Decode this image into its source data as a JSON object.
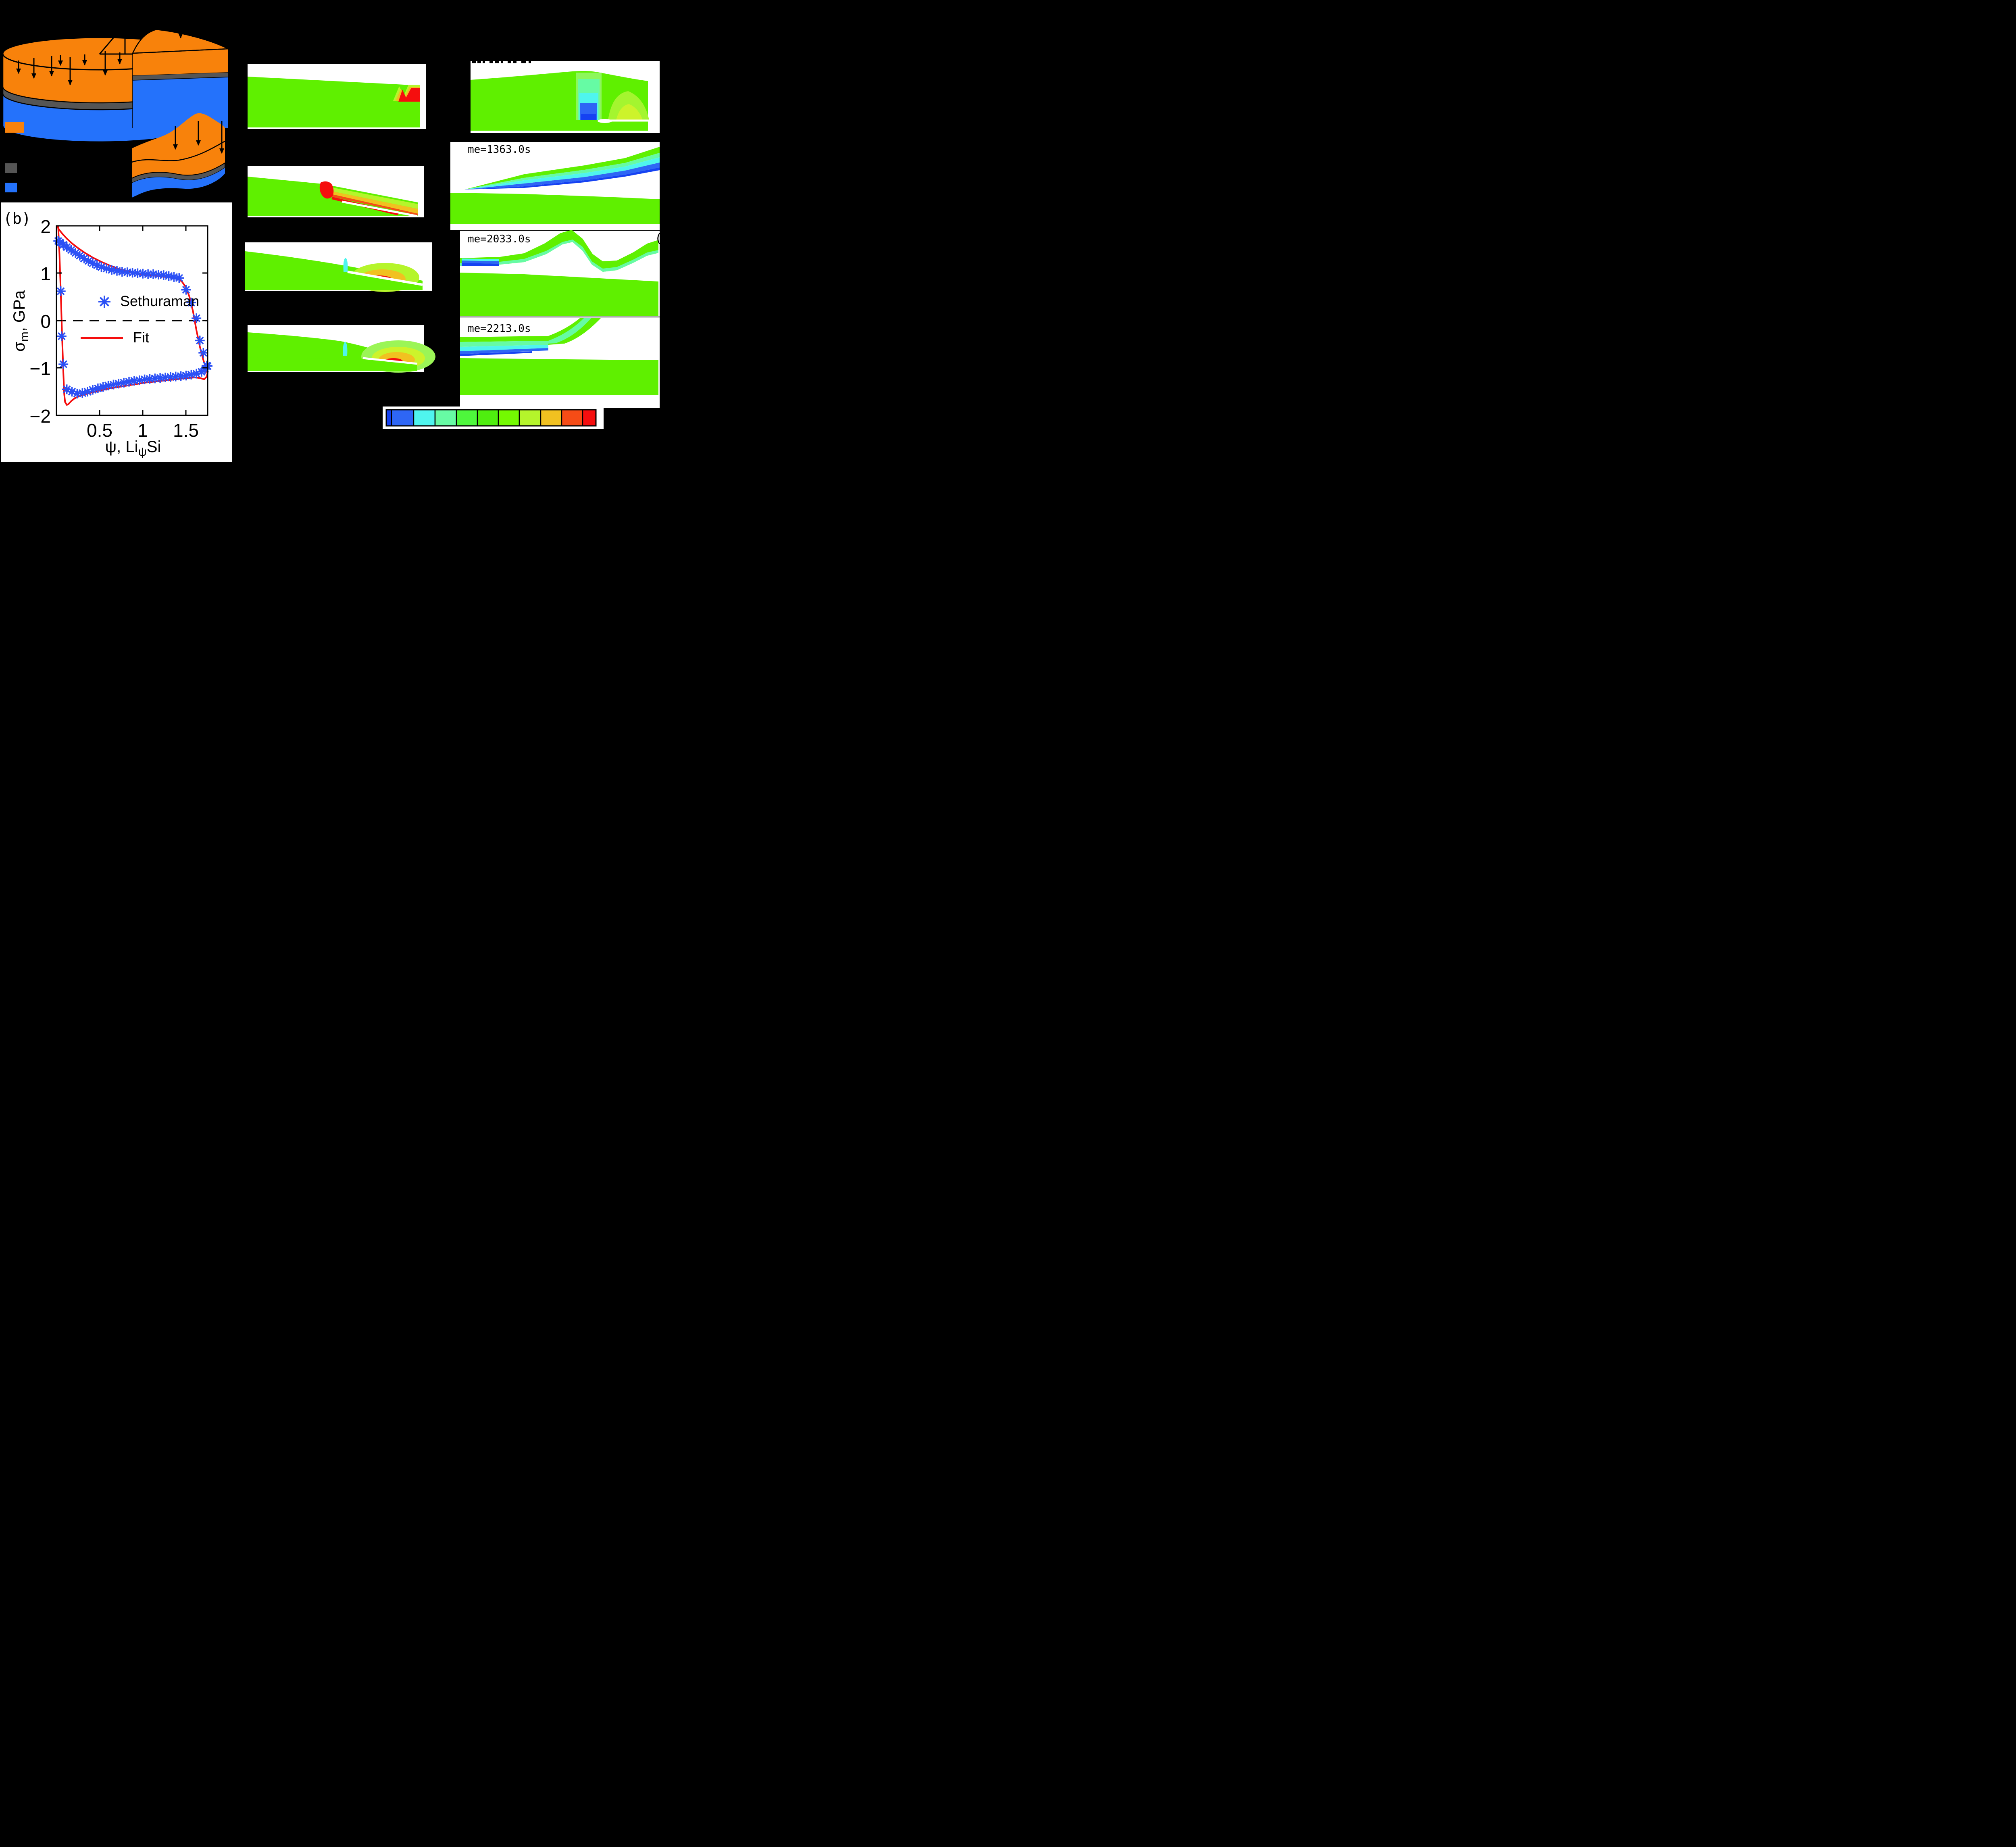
{
  "figure": {
    "background": "#000000",
    "panel_b_label": "(b)",
    "partial_panel_label": "(",
    "timestamps": [
      "me=1363.0s",
      "me=2033.0s",
      "me=2213.0s"
    ],
    "schematic_colors": {
      "film": "#F8820B",
      "interlayer": "#555555",
      "substrate": "#2472FB"
    }
  },
  "chart_data": {
    "type": "scatter",
    "title": "",
    "xlabel": {
      "prefix": "ψ, Li",
      "sub": "ψ",
      "suffix": "Si"
    },
    "ylabel": {
      "sym": "σ",
      "sub": "m",
      "suffix": ", GPa"
    },
    "xlim": [
      0,
      1.75
    ],
    "ylim": [
      -2,
      2
    ],
    "xticks": [
      "0.5",
      "1",
      "1.5"
    ],
    "xtick_values": [
      0.5,
      1,
      1.5
    ],
    "yticks": [
      "2",
      "1",
      "0",
      "−1",
      "−2"
    ],
    "ytick_values": [
      2,
      1,
      0,
      -1,
      -2
    ],
    "zero_line_dashed": true,
    "legend": [
      {
        "label": "Sethuraman",
        "type": "asterisk",
        "color": "#2B50F5"
      },
      {
        "label": "Fit",
        "type": "line",
        "color": "#F50E0E"
      }
    ],
    "series": [
      {
        "name": "Sethuraman",
        "type": "scatter",
        "marker": "asterisk",
        "color": "#2B50F5",
        "points": [
          [
            0.02,
            1.68
          ],
          [
            0.05,
            0.62
          ],
          [
            0.06,
            -0.33
          ],
          [
            0.08,
            -0.92
          ],
          [
            0.12,
            -1.45
          ],
          [
            0.18,
            -1.5
          ],
          [
            0.24,
            -1.54
          ],
          [
            0.3,
            -1.53
          ],
          [
            0.36,
            -1.5
          ],
          [
            0.42,
            -1.46
          ],
          [
            0.48,
            -1.43
          ],
          [
            0.54,
            -1.4
          ],
          [
            0.6,
            -1.37
          ],
          [
            0.66,
            -1.35
          ],
          [
            0.72,
            -1.33
          ],
          [
            0.78,
            -1.31
          ],
          [
            0.84,
            -1.29
          ],
          [
            0.9,
            -1.27
          ],
          [
            0.96,
            -1.26
          ],
          [
            1.02,
            -1.24
          ],
          [
            1.08,
            -1.23
          ],
          [
            1.14,
            -1.22
          ],
          [
            1.2,
            -1.21
          ],
          [
            1.26,
            -1.2
          ],
          [
            1.32,
            -1.19
          ],
          [
            1.38,
            -1.18
          ],
          [
            1.44,
            -1.17
          ],
          [
            1.5,
            -1.16
          ],
          [
            1.56,
            -1.14
          ],
          [
            1.62,
            -1.12
          ],
          [
            1.68,
            -1.08
          ],
          [
            1.72,
            -1.02
          ],
          [
            1.75,
            -0.96
          ],
          [
            0.04,
            1.65
          ],
          [
            0.08,
            1.6
          ],
          [
            0.12,
            1.55
          ],
          [
            0.17,
            1.49
          ],
          [
            0.22,
            1.43
          ],
          [
            0.27,
            1.37
          ],
          [
            0.32,
            1.31
          ],
          [
            0.37,
            1.26
          ],
          [
            0.42,
            1.21
          ],
          [
            0.47,
            1.17
          ],
          [
            0.52,
            1.13
          ],
          [
            0.58,
            1.1
          ],
          [
            0.64,
            1.07
          ],
          [
            0.7,
            1.05
          ],
          [
            0.76,
            1.03
          ],
          [
            0.82,
            1.02
          ],
          [
            0.88,
            1.01
          ],
          [
            0.94,
            1.0
          ],
          [
            1.0,
            0.99
          ],
          [
            1.06,
            0.98
          ],
          [
            1.12,
            0.98
          ],
          [
            1.18,
            0.97
          ],
          [
            1.24,
            0.96
          ],
          [
            1.3,
            0.94
          ],
          [
            1.36,
            0.92
          ],
          [
            1.42,
            0.9
          ],
          [
            1.5,
            0.65
          ],
          [
            1.56,
            0.38
          ],
          [
            1.62,
            0.05
          ],
          [
            1.66,
            -0.42
          ],
          [
            1.7,
            -0.68
          ],
          [
            1.74,
            -0.95
          ]
        ]
      },
      {
        "name": "Fit delithiation branch",
        "type": "line",
        "color": "#F50E0E",
        "points": [
          [
            0.005,
            2.0
          ],
          [
            0.03,
            1.92
          ],
          [
            0.07,
            1.83
          ],
          [
            0.12,
            1.73
          ],
          [
            0.18,
            1.63
          ],
          [
            0.25,
            1.53
          ],
          [
            0.33,
            1.43
          ],
          [
            0.42,
            1.33
          ],
          [
            0.52,
            1.24
          ],
          [
            0.62,
            1.16
          ],
          [
            0.72,
            1.09
          ],
          [
            0.82,
            1.04
          ],
          [
            0.92,
            1.0
          ],
          [
            1.02,
            0.97
          ],
          [
            1.12,
            0.95
          ],
          [
            1.22,
            0.93
          ],
          [
            1.32,
            0.91
          ],
          [
            1.4,
            0.88
          ],
          [
            1.45,
            0.83
          ],
          [
            1.5,
            0.7
          ],
          [
            1.54,
            0.5
          ],
          [
            1.58,
            0.2
          ],
          [
            1.62,
            -0.2
          ],
          [
            1.66,
            -0.55
          ],
          [
            1.7,
            -0.83
          ],
          [
            1.73,
            -1.0
          ],
          [
            1.75,
            -1.12
          ]
        ]
      },
      {
        "name": "Fit lithiation branch",
        "type": "line",
        "color": "#F50E0E",
        "points": [
          [
            0.02,
            2.0
          ],
          [
            0.035,
            1.4
          ],
          [
            0.05,
            0.6
          ],
          [
            0.065,
            -0.3
          ],
          [
            0.08,
            -1.1
          ],
          [
            0.09,
            -1.55
          ],
          [
            0.1,
            -1.72
          ],
          [
            0.12,
            -1.78
          ],
          [
            0.14,
            -1.76
          ],
          [
            0.17,
            -1.7
          ],
          [
            0.21,
            -1.64
          ],
          [
            0.27,
            -1.59
          ],
          [
            0.34,
            -1.55
          ],
          [
            0.42,
            -1.51
          ],
          [
            0.52,
            -1.47
          ],
          [
            0.62,
            -1.43
          ],
          [
            0.72,
            -1.4
          ],
          [
            0.82,
            -1.37
          ],
          [
            0.92,
            -1.34
          ],
          [
            1.02,
            -1.31
          ],
          [
            1.12,
            -1.29
          ],
          [
            1.22,
            -1.27
          ],
          [
            1.32,
            -1.25
          ],
          [
            1.42,
            -1.23
          ],
          [
            1.52,
            -1.21
          ],
          [
            1.6,
            -1.2
          ],
          [
            1.66,
            -1.21
          ],
          [
            1.71,
            -1.24
          ],
          [
            1.74,
            -1.18
          ],
          [
            1.75,
            -1.1
          ]
        ]
      }
    ]
  },
  "colorbar": {
    "colors": [
      "#1542F2",
      "#2E66F5",
      "#4FF5EE",
      "#67FBA4",
      "#4EF73C",
      "#4FEE0F",
      "#74FA01",
      "#B5F52B",
      "#F1C120",
      "#F64C16",
      "#F50E0E"
    ],
    "widths": [
      13,
      55,
      53,
      53,
      52,
      52,
      52,
      53,
      52,
      52,
      33
    ]
  }
}
